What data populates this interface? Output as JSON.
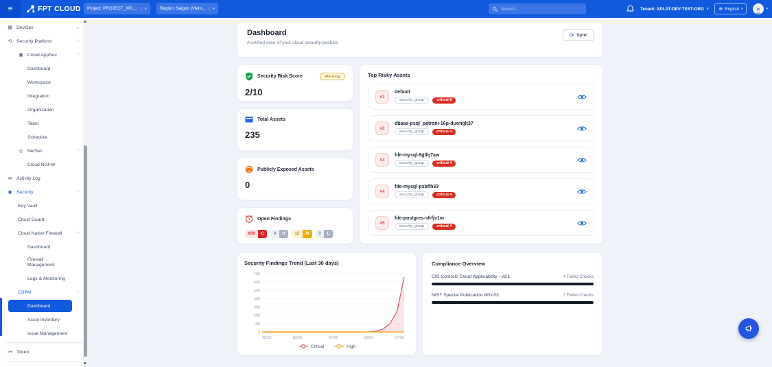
{
  "topbar": {
    "brand": "FPT CLOUD",
    "project": "Project: PROJECT_XPL...",
    "region": "Region: Saigon (Vietn...",
    "search_placeholder": "Search...",
    "tenant": "Tenant: XPLAT-DEV-TEST-ORG",
    "language": "English"
  },
  "sidebar": {
    "items": [
      {
        "label": "DevOps",
        "level": 0,
        "icon": "devops",
        "chevron": "down"
      },
      {
        "label": "Security Platform",
        "level": 0,
        "icon": "security-platform",
        "chevron": "up"
      },
      {
        "label": "Cloud AppSec",
        "level": 1,
        "icon": "cloud-appsec",
        "chevron": "up"
      },
      {
        "label": "Dashboard",
        "level": 2
      },
      {
        "label": "Workspace",
        "level": 2
      },
      {
        "label": "Integration",
        "level": 2
      },
      {
        "label": "Organization",
        "level": 2
      },
      {
        "label": "Team",
        "level": 2
      },
      {
        "label": "Schedule",
        "level": 2
      },
      {
        "label": "NetSec",
        "level": 1,
        "icon": "netsec",
        "chevron": "up"
      },
      {
        "label": "Cloud NGFW",
        "level": 2
      },
      {
        "label": "Activity Log",
        "level": 0,
        "icon": "activity-log"
      },
      {
        "label": "Security",
        "level": 0,
        "icon": "security",
        "chevron": "up",
        "active": true
      },
      {
        "label": "Key Vault",
        "level": 1
      },
      {
        "label": "Cloud Guard",
        "level": 1
      },
      {
        "label": "Cloud Native Firewall",
        "level": 1,
        "chevron": "up"
      },
      {
        "label": "Dashboard",
        "level": 2
      },
      {
        "label": "Firewall Management",
        "level": 2
      },
      {
        "label": "Logs & Monitoring",
        "level": 2
      },
      {
        "label": "CSPM",
        "level": 1,
        "chevron": "up",
        "active": true
      },
      {
        "label": "Dashboard",
        "level": 2,
        "selected": true
      },
      {
        "label": "Asset Inventory",
        "level": 2
      },
      {
        "label": "Issue Management",
        "level": 2
      },
      {
        "label": "Token",
        "level": 0,
        "icon": "token"
      }
    ]
  },
  "header": {
    "title": "Dashboard",
    "subtitle": "A unified view of your cloud security posture",
    "sync_label": "Sync"
  },
  "stats": {
    "risk_score": {
      "title": "Security Risk Score",
      "value": "2/10",
      "badge": "Warning"
    },
    "total_assets": {
      "title": "Total Assets",
      "value": "235"
    },
    "exposed": {
      "title": "Publicly Exposed Assets",
      "value": "0"
    },
    "open_findings": {
      "title": "Open Findings",
      "severities": [
        {
          "count": "669",
          "letter": "C",
          "level": "critical"
        },
        {
          "count": "0",
          "letter": "H",
          "level": "high"
        },
        {
          "count": "12",
          "letter": "M",
          "level": "medium"
        },
        {
          "count": "0",
          "letter": "L",
          "level": "low"
        }
      ]
    }
  },
  "risky_assets": {
    "title": "Top Risky Assets",
    "rows": [
      {
        "rank": "#1",
        "name": "default",
        "tag": "security_group",
        "severity": "critical 8"
      },
      {
        "rank": "#2",
        "name": "dbaas-psql_patroni-16p-duonglt37",
        "tag": "security_group",
        "severity": "critical 4"
      },
      {
        "rank": "#3",
        "name": "fde-mysql-9glfq7aw",
        "tag": "security_group",
        "severity": "critical 4"
      },
      {
        "rank": "#4",
        "name": "fde-mysql-pxbflh33",
        "tag": "security_group",
        "severity": "critical 4"
      },
      {
        "rank": "#5",
        "name": "fde-postgres-sfrfjv1m",
        "tag": "security_group",
        "severity": "critical 4"
      }
    ]
  },
  "chart_data": {
    "type": "area",
    "title": "Security Findings Trend (Last 30 days)",
    "x_ticks": [
      "25/02",
      "02/03",
      "07/03",
      "12/03",
      "17/03"
    ],
    "x_tick_positions": [
      0,
      5,
      10,
      15,
      20
    ],
    "ylim": [
      0,
      700
    ],
    "y_ticks": [
      0,
      100,
      200,
      300,
      400,
      500,
      600,
      700
    ],
    "grid": true,
    "legend_position": "bottom",
    "series": [
      {
        "name": "Critical",
        "color": "#e0565f",
        "fill": "rgba(224,86,95,0.16)",
        "values": [
          0,
          0,
          0,
          0,
          0,
          0,
          0,
          0,
          0,
          0,
          0,
          0,
          0,
          0,
          0,
          2,
          10,
          35,
          100,
          250,
          660
        ]
      },
      {
        "name": "High",
        "color": "#f59e0b",
        "values": [
          0,
          0,
          0,
          0,
          0,
          0,
          0,
          0,
          0,
          0,
          0,
          0,
          0,
          0,
          0,
          0,
          0,
          0,
          0,
          0,
          0
        ]
      }
    ]
  },
  "compliance": {
    "title": "Compliance Overview",
    "rows": [
      {
        "label": "CIS Controls Cloud Applicability - v8.1",
        "status": "4 Failed Checks",
        "bar_pct": 100
      },
      {
        "label": "NIST Special Publication 800-53",
        "status": "2 Failed Checks",
        "bar_pct": 100
      }
    ]
  },
  "colors": {
    "brand_blue": "#1159dd",
    "critical_red": "#d92d20",
    "warning_amber": "#f0b429",
    "chart_critical": "#e0565f",
    "chart_high": "#f59e0b",
    "compliance_bar": "#141b26"
  }
}
